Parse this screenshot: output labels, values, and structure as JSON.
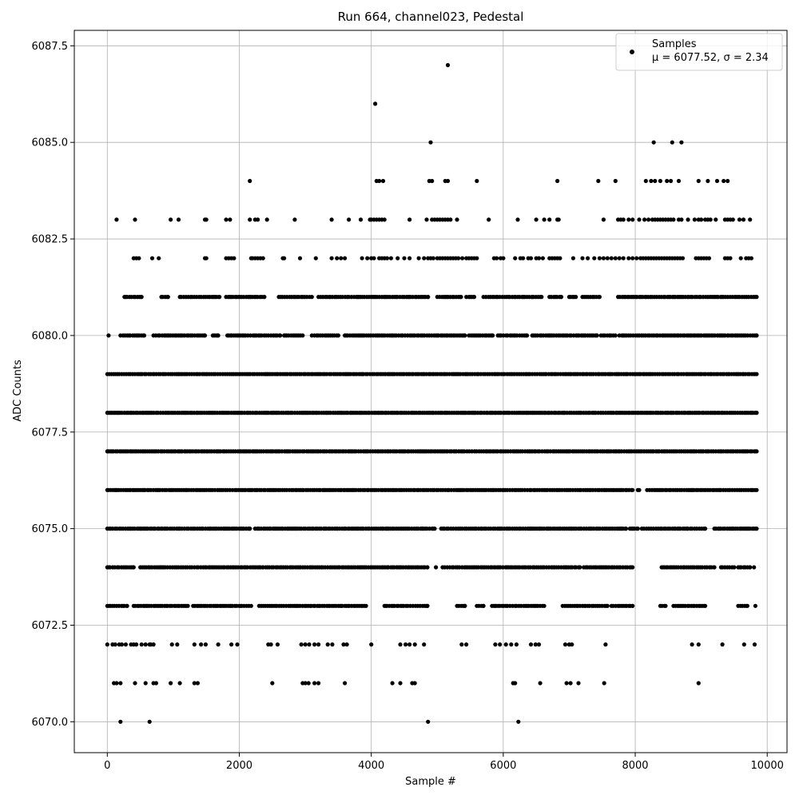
{
  "chart_data": {
    "type": "scatter",
    "title": "Run 664, channel023, Pedestal",
    "xlabel": "Sample #",
    "ylabel": "ADC Counts",
    "xlim": [
      -500,
      10300
    ],
    "ylim": [
      6069.2,
      6087.9
    ],
    "xticks": [
      0,
      2000,
      4000,
      6000,
      8000,
      10000
    ],
    "xtick_labels": [
      "0",
      "2000",
      "4000",
      "6000",
      "8000",
      "10000"
    ],
    "yticks": [
      6070.0,
      6072.5,
      6075.0,
      6077.5,
      6080.0,
      6082.5,
      6085.0,
      6087.5
    ],
    "ytick_labels": [
      "6070.0",
      "6072.5",
      "6075.0",
      "6077.5",
      "6080.0",
      "6082.5",
      "6085.0",
      "6087.5"
    ],
    "grid": true,
    "legend_position": "top-right",
    "marker_color": "#000000",
    "series": [
      {
        "name": "Samples",
        "stats_label": "μ = 6077.52, σ = 2.34",
        "x_range": [
          0,
          9840
        ],
        "levels": [
          {
            "y": 6070,
            "x": [
              200,
              640,
              4860,
              6230
            ]
          },
          {
            "y": 6071,
            "x": [
              100,
              140,
              200,
              420,
              580,
              700,
              740,
              960,
              1100,
              1320,
              1370,
              2500,
              2960,
              3000,
              3050,
              3140,
              3200,
              3600,
              4320,
              4440,
              4620,
              4660,
              6150,
              6180,
              6560,
              6960,
              7020,
              7140,
              7530,
              8960
            ]
          },
          {
            "y": 6072,
            "x": [
              0,
              80,
              120,
              180,
              220,
              280,
              360,
              400,
              440,
              520,
              580,
              640,
              660,
              700,
              980,
              1060,
              1320,
              1420,
              1490,
              1680,
              1880,
              1970,
              2440,
              2480,
              2580,
              2940,
              3000,
              3060,
              3140,
              3200,
              3340,
              3410,
              3580,
              3630,
              4000,
              4440,
              4520,
              4580,
              4660,
              4800,
              5370,
              5440,
              5880,
              5950,
              6040,
              6120,
              6200,
              6420,
              6490,
              6540,
              6940,
              7000,
              7040,
              7550,
              8860,
              8960,
              9320,
              9650,
              9810
            ]
          },
          {
            "y": 6073,
            "x_ranges": [
              [
                0,
                300
              ],
              [
                400,
                1220
              ],
              [
                1300,
                2180
              ],
              [
                2300,
                3560
              ],
              [
                3600,
                3920
              ],
              [
                4200,
                4850
              ],
              [
                5300,
                5420
              ],
              [
                5600,
                5700
              ],
              [
                5830,
                6620
              ],
              [
                6900,
                7580
              ],
              [
                7640,
                7960
              ],
              [
                8380,
                8460
              ],
              [
                8580,
                9060
              ],
              [
                9560,
                9700
              ],
              [
                9820,
                9820
              ]
            ]
          },
          {
            "y": 6074,
            "x_ranges": [
              [
                0,
                400
              ],
              [
                500,
                2360
              ],
              [
                2400,
                4260
              ],
              [
                4300,
                4850
              ],
              [
                4980,
                4980
              ],
              [
                5080,
                7160
              ],
              [
                7220,
                7960
              ],
              [
                8400,
                9200
              ],
              [
                9300,
                9500
              ],
              [
                9560,
                9740
              ],
              [
                9800,
                9800
              ]
            ]
          },
          {
            "y": 6075,
            "x_ranges": [
              [
                0,
                2160
              ],
              [
                2240,
                4960
              ],
              [
                5060,
                7860
              ],
              [
                7920,
                8040
              ],
              [
                8100,
                8860
              ],
              [
                8900,
                9060
              ],
              [
                9200,
                9840
              ]
            ]
          },
          {
            "y": 6076,
            "x_ranges": [
              [
                0,
                7960
              ],
              [
                8040,
                8060
              ],
              [
                8180,
                9840
              ]
            ]
          },
          {
            "y": 6077,
            "x_ranges": [
              [
                0,
                9840
              ]
            ]
          },
          {
            "y": 6078,
            "x_ranges": [
              [
                0,
                9840
              ]
            ]
          },
          {
            "y": 6079,
            "x_ranges": [
              [
                0,
                9840
              ]
            ]
          },
          {
            "y": 6080,
            "x_ranges": [
              [
                20,
                20
              ],
              [
                200,
                560
              ],
              [
                700,
                1480
              ],
              [
                1600,
                1680
              ],
              [
                1820,
                2620
              ],
              [
                2680,
                2960
              ],
              [
                3100,
                3500
              ],
              [
                3600,
                5420
              ],
              [
                5480,
                5840
              ],
              [
                5920,
                6360
              ],
              [
                6440,
                7420
              ],
              [
                7480,
                7700
              ],
              [
                7760,
                9840
              ]
            ]
          },
          {
            "y": 6081,
            "x_ranges": [
              [
                260,
                520
              ],
              [
                820,
                920
              ],
              [
                1100,
                1700
              ],
              [
                1800,
                2380
              ],
              [
                2600,
                3100
              ],
              [
                3200,
                3660
              ],
              [
                3700,
                4860
              ],
              [
                5000,
                5360
              ],
              [
                5440,
                5560
              ],
              [
                5700,
                6440
              ],
              [
                6460,
                6580
              ],
              [
                6700,
                6880
              ],
              [
                7000,
                7100
              ],
              [
                7200,
                7460
              ],
              [
                7740,
                9840
              ]
            ]
          },
          {
            "y": 6082,
            "x": [
              400,
              440,
              480,
              680,
              780,
              1480,
              1500,
              1800,
              1840,
              1880,
              1920,
              2180,
              2200,
              2240,
              2280,
              2320,
              2360,
              2660,
              2680,
              2920,
              3160,
              3400,
              3480,
              3540,
              3600,
              3860,
              3940,
              4000,
              4040,
              4120,
              4160,
              4200,
              4240,
              4300,
              4400,
              4500,
              4580,
              4720,
              4800,
              4860,
              4900,
              4940,
              5000,
              5040,
              5080,
              5120,
              5160,
              5200,
              5240,
              5280,
              5320,
              5380,
              5440,
              5480,
              5520,
              5560,
              5600,
              5860,
              5900,
              5960,
              6000,
              6180,
              6260,
              6300,
              6380,
              6420,
              6500,
              6540,
              6600,
              6700,
              6740,
              6780,
              6820,
              6860,
              7060,
              7200,
              7280,
              7380,
              7460,
              7520,
              7580,
              7640,
              7700,
              7760,
              7820,
              7900,
              7960,
              8020,
              8080,
              8120,
              8160,
              8200,
              8240,
              8280,
              8320,
              8360,
              8400,
              8440,
              8480,
              8520,
              8560,
              8600,
              8640,
              8680,
              8720,
              8920,
              8960,
              9000,
              9040,
              9080,
              9120,
              9360,
              9400,
              9440,
              9600,
              9680,
              9720,
              9760
            ]
          },
          {
            "y": 6083,
            "x": [
              140,
              420,
              960,
              1080,
              1480,
              1500,
              1800,
              1860,
              2160,
              2240,
              2280,
              2420,
              2840,
              3400,
              3660,
              3840,
              3980,
              4000,
              4040,
              4080,
              4120,
              4160,
              4200,
              4580,
              4840,
              4920,
              4960,
              5000,
              5040,
              5080,
              5120,
              5160,
              5200,
              5300,
              5780,
              6220,
              6500,
              6620,
              6700,
              6820,
              6840,
              7520,
              7740,
              7780,
              7820,
              7900,
              7960,
              8060,
              8140,
              8200,
              8260,
              8300,
              8340,
              8380,
              8420,
              8460,
              8500,
              8540,
              8580,
              8660,
              8700,
              8800,
              8900,
              8960,
              9000,
              9060,
              9100,
              9140,
              9220,
              9360,
              9400,
              9440,
              9480,
              9580,
              9640,
              9740
            ]
          },
          {
            "y": 6084,
            "x": [
              2160,
              4080,
              4120,
              4180,
              4880,
              4920,
              5120,
              5160,
              5600,
              6820,
              7440,
              7700,
              8160,
              8240,
              8300,
              8380,
              8480,
              8540,
              8660,
              8960,
              9100,
              9240,
              9340,
              9400
            ]
          },
          {
            "y": 6085,
            "x": [
              4900,
              8280,
              8560,
              8700
            ]
          },
          {
            "y": 6086,
            "x": [
              4060
            ]
          },
          {
            "y": 6087,
            "x": [
              5160
            ]
          }
        ]
      }
    ]
  }
}
